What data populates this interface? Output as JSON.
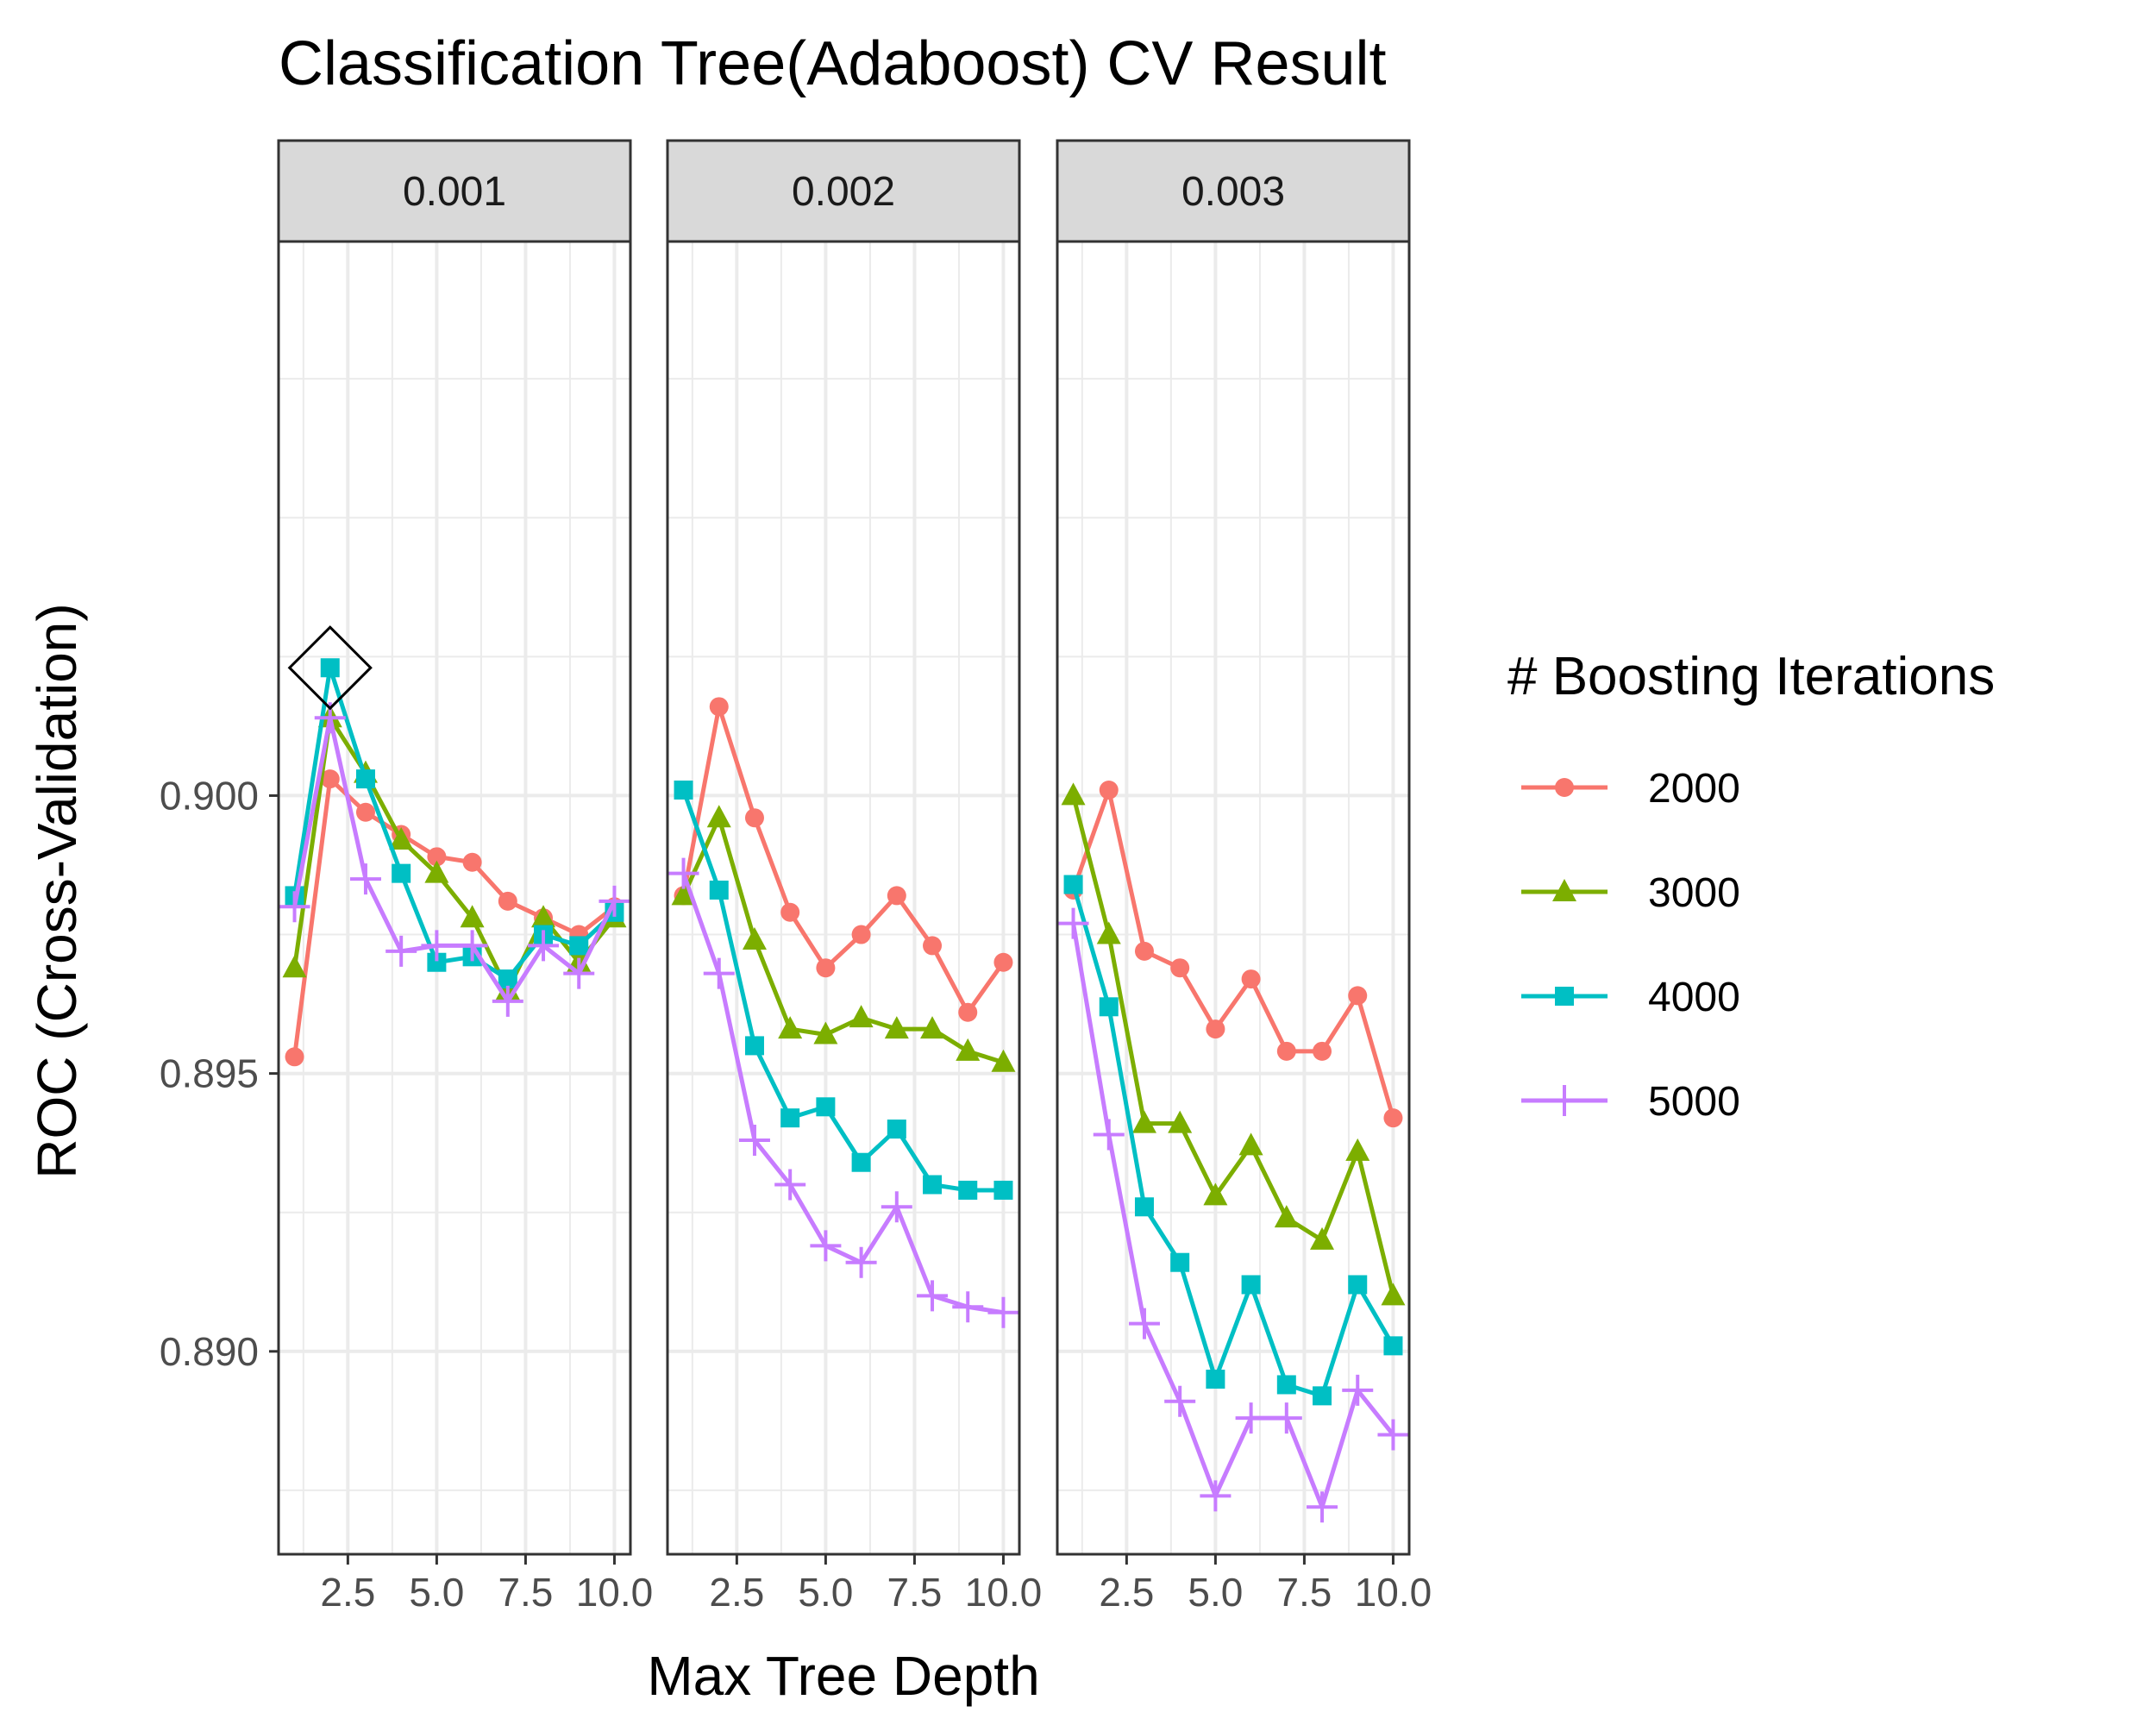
{
  "chart_data": {
    "type": "line",
    "title": "Classification Tree(Adaboost) CV Result",
    "xlabel": "Max Tree Depth",
    "ylabel": "ROC (Cross-Validation)",
    "x": [
      1,
      2,
      3,
      4,
      5,
      6,
      7,
      8,
      9,
      10
    ],
    "xlim": [
      0.55,
      10.45
    ],
    "ylim": [
      0.88635,
      0.90997
    ],
    "x_ticks": [
      2.5,
      5.0,
      7.5,
      10.0
    ],
    "x_tick_labels": [
      "2.5",
      "5.0",
      "7.5",
      "10.0"
    ],
    "y_ticks": [
      0.89,
      0.895,
      0.9
    ],
    "y_tick_labels": [
      "0.890",
      "0.895",
      "0.900"
    ],
    "grid": true,
    "legend": {
      "title": "# Boosting Iterations",
      "position": "right"
    },
    "best_marker": {
      "panel": 0,
      "series": "4000",
      "x": 2,
      "y": 0.9023
    },
    "series": [
      {
        "name": "2000",
        "color": "#F8766D",
        "shape": "circle"
      },
      {
        "name": "3000",
        "color": "#7CAE00",
        "shape": "triangle"
      },
      {
        "name": "4000",
        "color": "#00BFC4",
        "shape": "square"
      },
      {
        "name": "5000",
        "color": "#C77CFF",
        "shape": "plus"
      }
    ],
    "panels": [
      {
        "label": "0.001",
        "series": [
          {
            "name": "2000",
            "values": [
              0.8953,
              0.9003,
              0.8997,
              0.8993,
              0.8989,
              0.8988,
              0.8981,
              0.8978,
              0.8975,
              0.898
            ]
          },
          {
            "name": "3000",
            "values": [
              0.8969,
              0.9014,
              0.9004,
              0.8992,
              0.8986,
              0.8978,
              0.8965,
              0.8978,
              0.897,
              0.8978
            ]
          },
          {
            "name": "4000",
            "values": [
              0.8982,
              0.9023,
              0.9003,
              0.8986,
              0.897,
              0.8971,
              0.8967,
              0.8975,
              0.8973,
              0.8979
            ]
          },
          {
            "name": "5000",
            "values": [
              0.898,
              0.9014,
              0.8985,
              0.8972,
              0.8973,
              0.8973,
              0.8963,
              0.8973,
              0.8968,
              0.8981
            ]
          }
        ]
      },
      {
        "label": "0.002",
        "series": [
          {
            "name": "2000",
            "values": [
              0.8982,
              0.9016,
              0.8996,
              0.8979,
              0.8969,
              0.8975,
              0.8982,
              0.8973,
              0.8961,
              0.897
            ]
          },
          {
            "name": "3000",
            "values": [
              0.8982,
              0.8996,
              0.8974,
              0.8958,
              0.8957,
              0.896,
              0.8958,
              0.8958,
              0.8954,
              0.8952
            ]
          },
          {
            "name": "4000",
            "values": [
              0.9001,
              0.8983,
              0.8955,
              0.8942,
              0.8944,
              0.8934,
              0.894,
              0.893,
              0.8929,
              0.8929
            ]
          },
          {
            "name": "5000",
            "values": [
              0.8986,
              0.8968,
              0.8938,
              0.893,
              0.8919,
              0.8916,
              0.8926,
              0.891,
              0.8908,
              0.8907
            ]
          }
        ]
      },
      {
        "label": "0.003",
        "series": [
          {
            "name": "2000",
            "values": [
              0.8983,
              0.9001,
              0.8972,
              0.8969,
              0.8958,
              0.8967,
              0.8954,
              0.8954,
              0.8964,
              0.8942
            ]
          },
          {
            "name": "3000",
            "values": [
              0.9,
              0.8975,
              0.8941,
              0.8941,
              0.8928,
              0.8937,
              0.8924,
              0.892,
              0.8936,
              0.891
            ]
          },
          {
            "name": "4000",
            "values": [
              0.8984,
              0.8962,
              0.8926,
              0.8916,
              0.8895,
              0.8912,
              0.8894,
              0.8892,
              0.8912,
              0.8901
            ]
          },
          {
            "name": "5000",
            "values": [
              0.8977,
              0.8939,
              0.8905,
              0.8891,
              0.8874,
              0.8888,
              0.8888,
              0.8872,
              0.8893,
              0.8885
            ]
          }
        ]
      }
    ]
  }
}
